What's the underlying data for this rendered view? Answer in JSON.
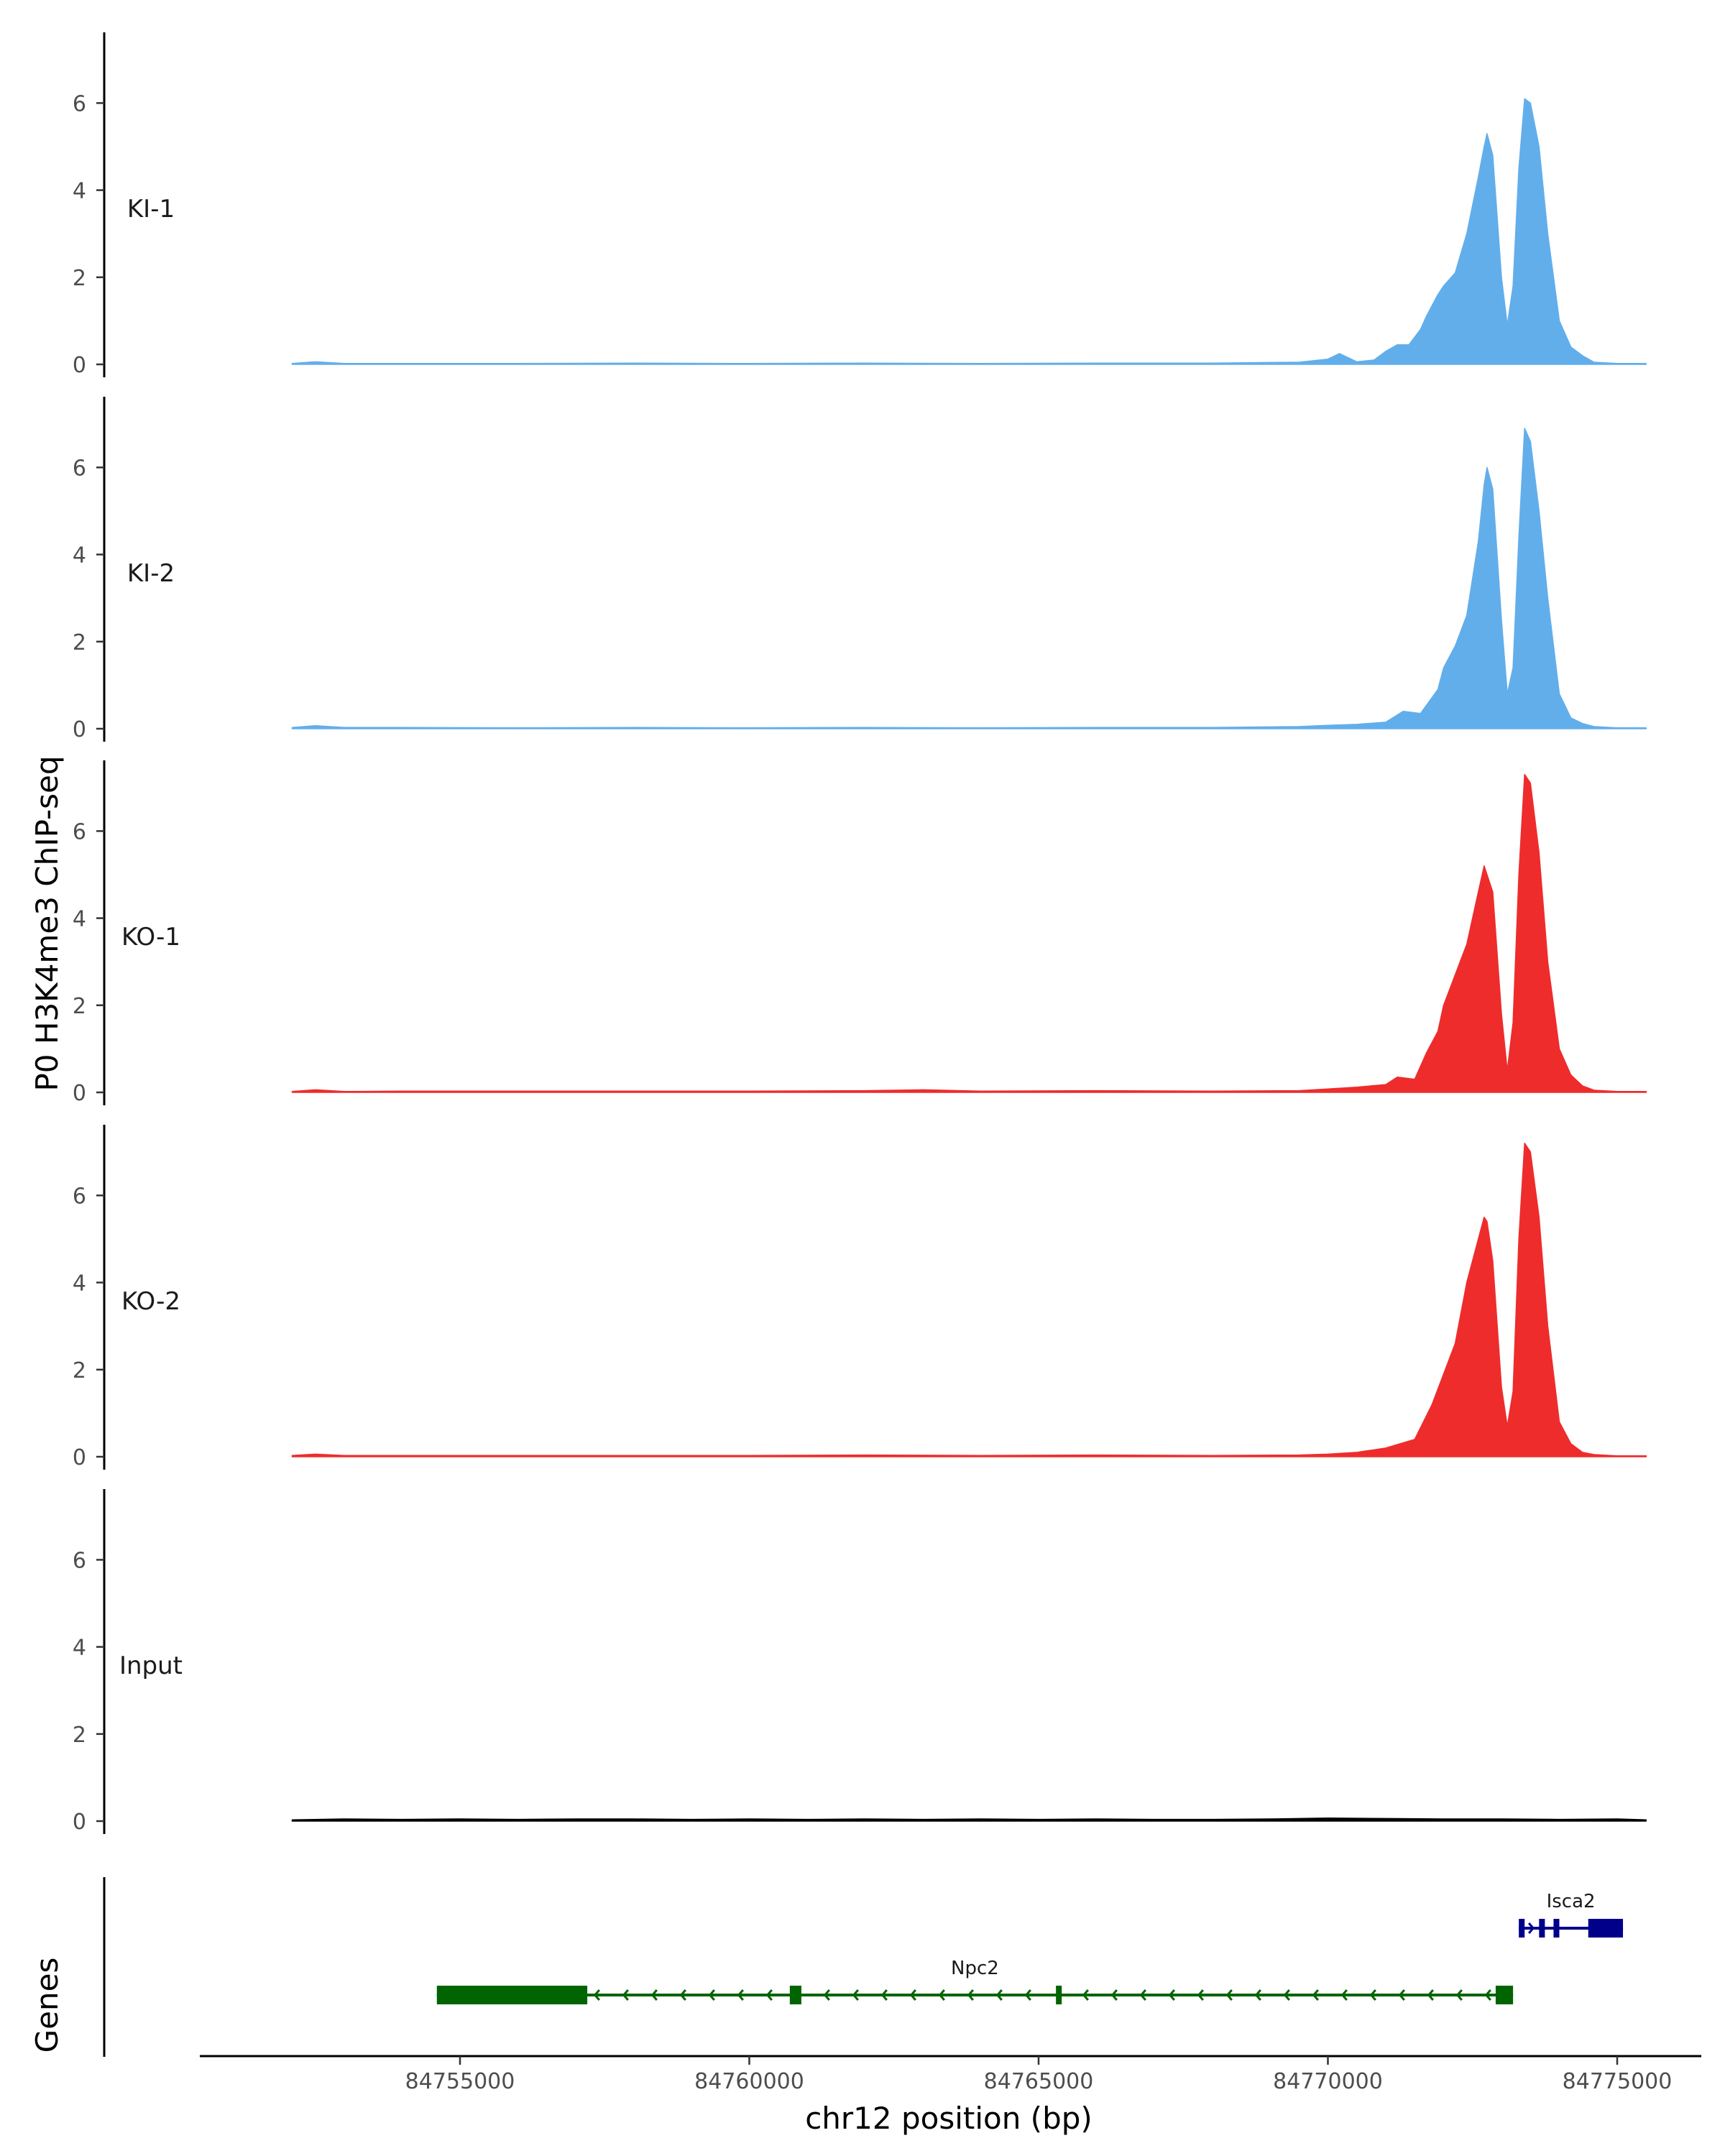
{
  "chart_data": {
    "type": "area",
    "ylabel": "P0 H3K4me3 ChIP-seq",
    "xlabel": "chr12 position (bp)",
    "x_range": [
      84751000,
      84776500
    ],
    "x_ticks": [
      84755000,
      84760000,
      84765000,
      84770000,
      84775000
    ],
    "x_tick_labels": [
      "84755000",
      "84760000",
      "84765000",
      "84770000",
      "84775000"
    ],
    "ylim": [
      0,
      7.5
    ],
    "y_ticks": [
      0,
      2,
      4,
      6
    ],
    "y_tick_labels": [
      "0",
      "2",
      "4",
      "6"
    ],
    "grid": false,
    "tracks": [
      {
        "name": "KI-1",
        "color": "#62aeeb",
        "x": [
          84752100,
          84752500,
          84753000,
          84754000,
          84756000,
          84758000,
          84760000,
          84762000,
          84764000,
          84766000,
          84768000,
          84769500,
          84770000,
          84770200,
          84770500,
          84770800,
          84771000,
          84771200,
          84771400,
          84771600,
          84771700,
          84771900,
          84772000,
          84772200,
          84772400,
          84772600,
          84772700,
          84772750,
          84772850,
          84773000,
          84773100,
          84773200,
          84773300,
          84773400,
          84773500,
          84773650,
          84773800,
          84774000,
          84774200,
          84774400,
          84774600,
          84775000,
          84775500
        ],
        "values": [
          0.02,
          0.06,
          0.02,
          0.02,
          0.02,
          0.03,
          0.02,
          0.03,
          0.02,
          0.03,
          0.03,
          0.05,
          0.12,
          0.25,
          0.06,
          0.1,
          0.3,
          0.45,
          0.45,
          0.8,
          1.1,
          1.6,
          1.8,
          2.1,
          3.0,
          4.3,
          5.0,
          5.3,
          4.8,
          2.0,
          0.9,
          1.8,
          4.5,
          6.1,
          6.0,
          5.0,
          3.0,
          1.0,
          0.4,
          0.2,
          0.05,
          0.02,
          0.02
        ]
      },
      {
        "name": "KI-2",
        "color": "#62aeeb",
        "x": [
          84752100,
          84752500,
          84753000,
          84754000,
          84756000,
          84758000,
          84760000,
          84762000,
          84764000,
          84766000,
          84768000,
          84769500,
          84770000,
          84770500,
          84771000,
          84771300,
          84771600,
          84771900,
          84772000,
          84772200,
          84772400,
          84772600,
          84772700,
          84772750,
          84772850,
          84773000,
          84773100,
          84773200,
          84773300,
          84773400,
          84773500,
          84773650,
          84773800,
          84774000,
          84774200,
          84774400,
          84774600,
          84775000,
          84775500
        ],
        "values": [
          0.03,
          0.07,
          0.03,
          0.03,
          0.02,
          0.03,
          0.02,
          0.03,
          0.02,
          0.03,
          0.03,
          0.05,
          0.08,
          0.1,
          0.15,
          0.4,
          0.35,
          0.9,
          1.4,
          1.9,
          2.6,
          4.3,
          5.6,
          6.0,
          5.5,
          2.5,
          0.8,
          1.4,
          4.4,
          6.9,
          6.6,
          5.0,
          3.0,
          0.8,
          0.25,
          0.12,
          0.05,
          0.02,
          0.02
        ]
      },
      {
        "name": "KO-1",
        "color": "#ee2c2c",
        "x": [
          84752100,
          84752500,
          84753000,
          84754000,
          84756000,
          84758000,
          84760000,
          84762000,
          84763000,
          84764000,
          84766000,
          84768000,
          84769500,
          84770000,
          84770500,
          84771000,
          84771200,
          84771500,
          84771700,
          84771900,
          84772000,
          84772200,
          84772400,
          84772600,
          84772700,
          84772750,
          84772850,
          84773000,
          84773100,
          84773200,
          84773300,
          84773400,
          84773500,
          84773650,
          84773800,
          84774000,
          84774200,
          84774400,
          84774600,
          84775000,
          84775500
        ],
        "values": [
          0.02,
          0.06,
          0.02,
          0.03,
          0.03,
          0.03,
          0.03,
          0.04,
          0.06,
          0.03,
          0.04,
          0.03,
          0.04,
          0.08,
          0.12,
          0.18,
          0.35,
          0.3,
          0.9,
          1.4,
          2.0,
          2.7,
          3.4,
          4.6,
          5.2,
          5.0,
          4.6,
          1.8,
          0.5,
          1.6,
          5.0,
          7.3,
          7.1,
          5.5,
          3.0,
          1.0,
          0.4,
          0.15,
          0.05,
          0.02,
          0.02
        ]
      },
      {
        "name": "KO-2",
        "color": "#ee2c2c",
        "x": [
          84752100,
          84752500,
          84753000,
          84754000,
          84756000,
          84758000,
          84760000,
          84762000,
          84764000,
          84766000,
          84768000,
          84769500,
          84770000,
          84770500,
          84771000,
          84771500,
          84771800,
          84772000,
          84772200,
          84772400,
          84772600,
          84772700,
          84772750,
          84772850,
          84773000,
          84773100,
          84773200,
          84773300,
          84773400,
          84773500,
          84773650,
          84773800,
          84774000,
          84774200,
          84774400,
          84774600,
          84775000,
          84775500
        ],
        "values": [
          0.03,
          0.06,
          0.03,
          0.03,
          0.03,
          0.03,
          0.03,
          0.04,
          0.03,
          0.04,
          0.03,
          0.04,
          0.06,
          0.1,
          0.2,
          0.4,
          1.2,
          1.9,
          2.6,
          4.0,
          5.0,
          5.5,
          5.4,
          4.5,
          1.6,
          0.7,
          1.5,
          5.0,
          7.2,
          7.0,
          5.5,
          3.0,
          0.8,
          0.3,
          0.1,
          0.05,
          0.02,
          0.02
        ]
      },
      {
        "name": "Input",
        "color": "#000000",
        "x": [
          84752100,
          84753000,
          84754000,
          84755000,
          84756000,
          84757000,
          84758000,
          84759000,
          84760000,
          84761000,
          84762000,
          84763000,
          84764000,
          84765000,
          84766000,
          84767000,
          84768000,
          84769000,
          84770000,
          84771000,
          84772000,
          84773000,
          84774000,
          84775000,
          84775500
        ],
        "values": [
          0.03,
          0.05,
          0.04,
          0.05,
          0.04,
          0.05,
          0.05,
          0.04,
          0.05,
          0.04,
          0.05,
          0.04,
          0.05,
          0.04,
          0.05,
          0.04,
          0.04,
          0.05,
          0.07,
          0.06,
          0.05,
          0.05,
          0.04,
          0.05,
          0.03
        ]
      }
    ],
    "genes_track": {
      "label": "Genes",
      "genes": [
        {
          "name": "Npc2",
          "color": "#006400",
          "strand": "-",
          "start": 84754600,
          "end": 84773200,
          "exons": [
            [
              84754600,
              84757200
            ],
            [
              84760700,
              84760900
            ],
            [
              84765300,
              84765400
            ],
            [
              84772900,
              84773200
            ]
          ]
        },
        {
          "name": "Isca2",
          "color": "#00008b",
          "strand": "+",
          "start": 84773300,
          "end": 84775100,
          "exons": [
            [
              84773300,
              84773400
            ],
            [
              84773650,
              84773750
            ],
            [
              84773900,
              84774000
            ],
            [
              84774500,
              84775100
            ]
          ]
        }
      ]
    }
  }
}
